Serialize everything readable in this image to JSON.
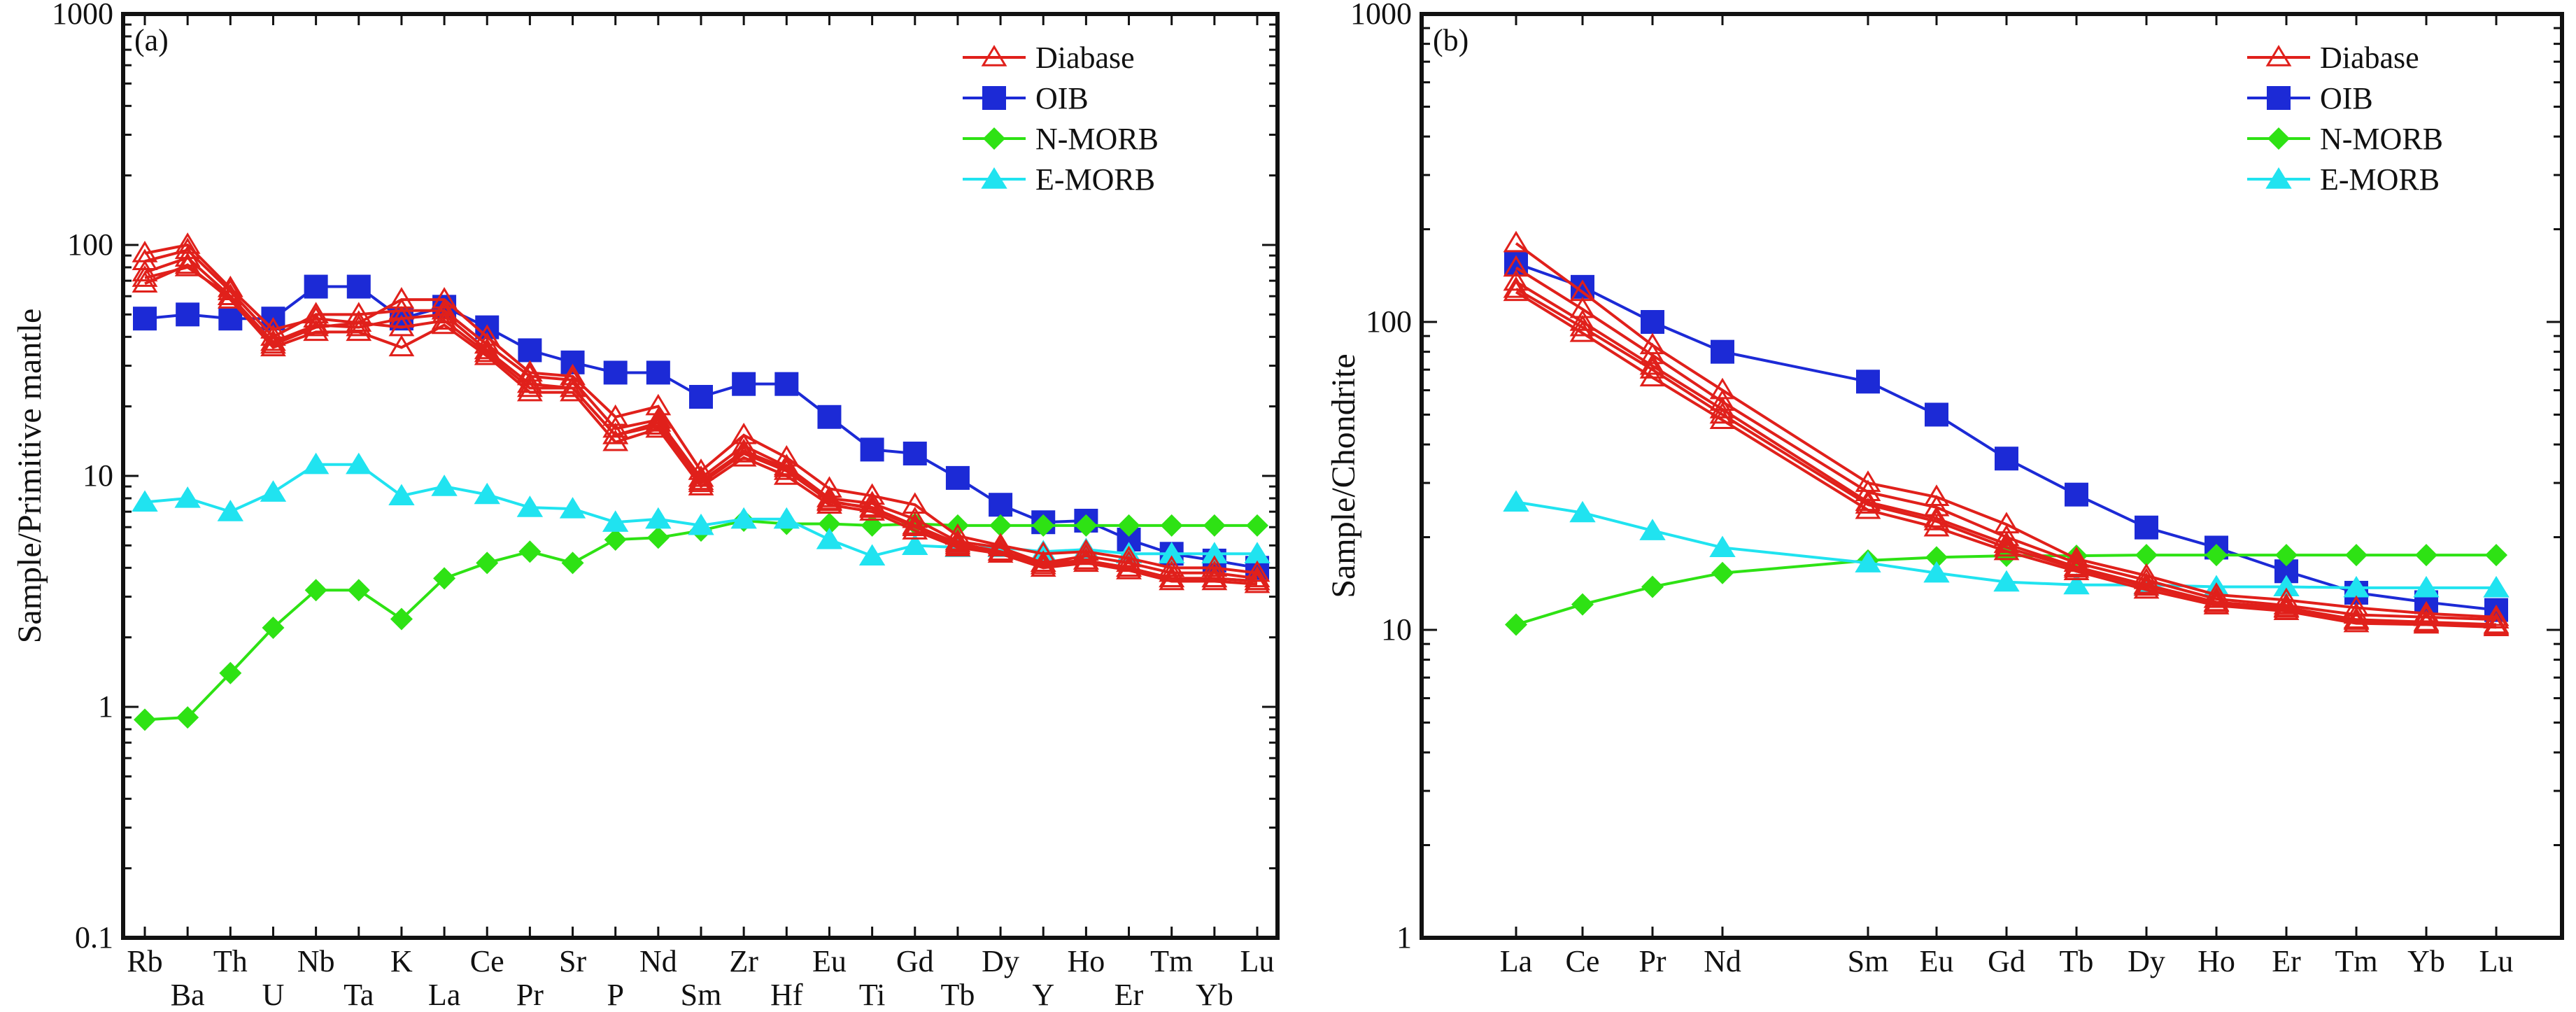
{
  "chart_data": [
    {
      "type": "line",
      "panel": "(a)",
      "xlabel": "",
      "ylabel": "Sample/Primitive mantle",
      "yscale": "log",
      "ylim": [
        0.1,
        1000
      ],
      "yticks": [
        "0.1",
        "1",
        "10",
        "100",
        "1000"
      ],
      "categories": [
        "Rb",
        "Ba",
        "Th",
        "U",
        "Nb",
        "Ta",
        "K",
        "La",
        "Ce",
        "Pr",
        "Sr",
        "P",
        "Nd",
        "Sm",
        "Zr",
        "Hf",
        "Eu",
        "Ti",
        "Gd",
        "Tb",
        "Dy",
        "Y",
        "Ho",
        "Er",
        "Tm",
        "Yb",
        "Lu"
      ],
      "legend_position": "top-right",
      "series": [
        {
          "name": "Diabase",
          "values": [
            80,
            90,
            62,
            40,
            46,
            46,
            50,
            50,
            38,
            26,
            26,
            16,
            18,
            10,
            13,
            11,
            8.2,
            7.5,
            6.2,
            5.2,
            4.9,
            4.3,
            4.5,
            4.2,
            3.8,
            3.8,
            3.6
          ]
        },
        {
          "name": "OIB",
          "values": [
            48,
            50,
            48,
            48,
            66,
            66,
            48,
            54,
            44,
            35,
            31,
            28,
            28,
            22,
            25,
            25,
            18,
            13,
            12.5,
            9.8,
            7.5,
            6.3,
            6.4,
            5.3,
            4.6,
            4.3,
            4
          ]
        },
        {
          "name": "N-MORB",
          "values": [
            0.88,
            0.9,
            1.4,
            2.2,
            3.2,
            3.2,
            2.4,
            3.6,
            4.2,
            4.7,
            4.2,
            5.3,
            5.4,
            5.8,
            6.4,
            6.2,
            6.2,
            6.1,
            6.2,
            6.1,
            6.1,
            6.1,
            6.1,
            6.1,
            6.1,
            6.1,
            6.1
          ]
        },
        {
          "name": "E-MORB",
          "values": [
            7.7,
            8,
            7,
            8.5,
            11.2,
            11.2,
            8.2,
            9,
            8.3,
            7.3,
            7.2,
            6.3,
            6.5,
            6.1,
            6.5,
            6.5,
            5.3,
            4.5,
            5,
            4.9,
            4.9,
            4.7,
            4.8,
            4.6,
            4.6,
            4.6,
            4.6
          ]
        }
      ],
      "diabase_samples": [
        [
          92,
          100,
          65,
          43,
          48,
          46,
          58,
          58,
          40,
          28,
          27,
          18,
          20,
          10.5,
          15,
          12,
          8.8,
          8.2,
          7.5,
          5.5,
          5,
          4.6,
          4.7,
          4.4,
          4,
          4,
          3.8
        ],
        [
          85,
          95,
          63,
          40,
          50,
          50,
          52,
          52,
          37,
          27,
          26,
          16,
          17.5,
          9.8,
          13.5,
          11,
          8,
          7.6,
          6.5,
          5.2,
          4.9,
          4.2,
          4.5,
          4.2,
          3.8,
          3.8,
          3.6
        ],
        [
          76,
          88,
          60,
          38,
          45,
          44,
          48,
          50,
          35,
          25,
          24,
          15,
          17,
          9.3,
          12.5,
          10.5,
          7.8,
          7.2,
          6,
          5,
          4.7,
          4.1,
          4.3,
          4,
          3.6,
          3.6,
          3.5
        ],
        [
          68,
          82,
          58,
          36,
          42,
          42,
          36,
          45,
          33,
          23,
          23,
          14,
          16,
          9,
          12,
          10,
          7.5,
          7,
          5.8,
          4.9,
          4.6,
          4,
          4.2,
          3.9,
          3.5,
          3.5,
          3.4
        ],
        [
          72,
          80,
          60,
          37,
          44,
          46,
          44,
          47,
          34,
          24,
          24,
          15,
          16.5,
          9.5,
          12.8,
          10.8,
          7.7,
          7.3,
          6.1,
          5.1,
          4.7,
          4.2,
          4.3,
          4,
          3.6,
          3.6,
          3.5
        ]
      ]
    },
    {
      "type": "line",
      "panel": "(b)",
      "xlabel": "",
      "ylabel": "Sample/Chondrite",
      "yscale": "log",
      "ylim": [
        1,
        1000
      ],
      "yticks": [
        "1",
        "10",
        "100",
        "1000"
      ],
      "categories": [
        "La",
        "Ce",
        "Pr",
        "Nd",
        "Sm",
        "Eu",
        "Gd",
        "Tb",
        "Dy",
        "Ho",
        "Er",
        "Tm",
        "Yb",
        "Lu"
      ],
      "legend_position": "top-right",
      "series": [
        {
          "name": "Diabase",
          "values": [
            140,
            100,
            72,
            52,
            27,
            23,
            19,
            16,
            14,
            12.5,
            12,
            11,
            10.8,
            10.6
          ]
        },
        {
          "name": "OIB",
          "values": [
            155,
            130,
            100,
            80,
            64,
            50,
            36,
            27.5,
            21.5,
            18.5,
            15.5,
            13.2,
            12.3,
            11.6
          ]
        },
        {
          "name": "N-MORB",
          "values": [
            10.4,
            12.1,
            13.8,
            15.3,
            16.8,
            17.2,
            17.4,
            17.4,
            17.5,
            17.5,
            17.5,
            17.5,
            17.5,
            17.5
          ]
        },
        {
          "name": "E-MORB",
          "values": [
            26,
            24,
            21,
            18.5,
            16.5,
            15.3,
            14.3,
            14,
            14,
            13.8,
            13.8,
            13.7,
            13.7,
            13.7
          ]
        }
      ],
      "diabase_samples": [
        [
          180,
          125,
          84,
          60,
          30,
          27,
          22,
          17,
          15,
          13,
          12.5,
          11.8,
          11.3,
          11
        ],
        [
          150,
          110,
          78,
          55,
          28,
          25,
          20,
          16.5,
          14.5,
          12.6,
          12,
          11.2,
          11,
          10.8
        ],
        [
          135,
          100,
          72,
          52,
          26,
          23,
          19,
          16,
          14,
          12.3,
          11.8,
          10.8,
          10.6,
          10.4
        ],
        [
          125,
          92,
          66,
          48,
          24.5,
          21.5,
          18,
          15.5,
          13.5,
          12,
          11.5,
          10.5,
          10.4,
          10.2
        ],
        [
          128,
          96,
          70,
          50,
          25.5,
          22.5,
          18.5,
          15.8,
          13.8,
          12.2,
          11.7,
          10.7,
          10.5,
          10.3
        ]
      ]
    }
  ],
  "colors": {
    "Diabase": "#e0201b",
    "OIB": "#1c2ad6",
    "N-MORB": "#2ee214",
    "E-MORB": "#20e3f0"
  }
}
